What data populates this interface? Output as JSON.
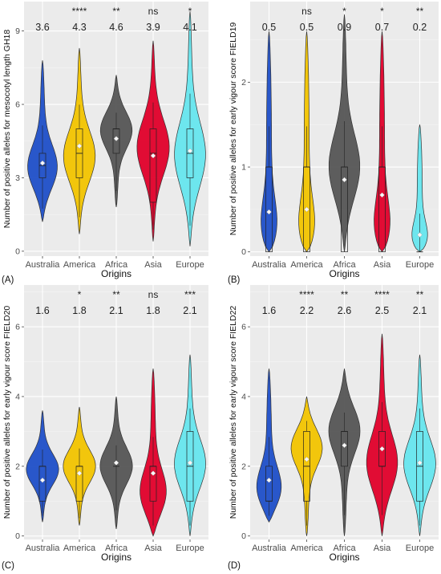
{
  "chart_data": [
    {
      "panel_label": "(A)",
      "type": "violin",
      "xlabel": "Origins",
      "ylabel": "Number of positive alleles for mesocotyl length GH18",
      "ylim": [
        -0.2,
        10.2
      ],
      "yticks": [
        0,
        3,
        6,
        9
      ],
      "grid": true,
      "categories": [
        "Australia",
        "America",
        "Africa",
        "Asia",
        "Europe"
      ],
      "colors": [
        "#1f4fc8",
        "#f2c400",
        "#555555",
        "#e0002a",
        "#66e6ee"
      ],
      "means": [
        "3.6",
        "4.3",
        "4.6",
        "3.9",
        "4.1"
      ],
      "significance": [
        "",
        "****",
        "**",
        "ns",
        "*"
      ],
      "distributions": [
        {
          "min": 1.2,
          "q1": 3.0,
          "median": 3.5,
          "q3": 4.0,
          "max": 7.8,
          "mean": 3.6,
          "peak": 3.3
        },
        {
          "min": 0.7,
          "q1": 3.0,
          "median": 4.0,
          "q3": 5.0,
          "max": 8.3,
          "mean": 4.3,
          "peak": 3.8
        },
        {
          "min": 1.8,
          "q1": 4.0,
          "median": 5.0,
          "q3": 5.0,
          "max": 7.2,
          "mean": 4.6,
          "peak": 5.0
        },
        {
          "min": 0.4,
          "q1": 2.0,
          "median": 4.0,
          "q3": 5.0,
          "max": 8.6,
          "mean": 3.9,
          "peak": 4.2
        },
        {
          "min": 0.2,
          "q1": 3.0,
          "median": 4.0,
          "q3": 5.0,
          "max": 9.8,
          "mean": 4.1,
          "peak": 3.8
        }
      ]
    },
    {
      "panel_label": "(B)",
      "type": "violin",
      "xlabel": "Origins",
      "ylabel": "Number of positive alleles for early vigour score FIELD19",
      "ylim": [
        -0.05,
        2.95
      ],
      "yticks": [
        0,
        1,
        2
      ],
      "grid": true,
      "categories": [
        "Australia",
        "America",
        "Africa",
        "Asia",
        "Europe"
      ],
      "colors": [
        "#1f4fc8",
        "#f2c400",
        "#555555",
        "#e0002a",
        "#66e6ee"
      ],
      "means": [
        "0.5",
        "0.5",
        "0.9",
        "0.7",
        "0.2"
      ],
      "significance": [
        "",
        "ns",
        "*",
        "*",
        "**"
      ],
      "distributions": [
        {
          "min": 0,
          "q1": 0,
          "median": 1,
          "q3": 1,
          "max": 2.6,
          "mean": 0.47,
          "peak": 0.1
        },
        {
          "min": 0,
          "q1": 0,
          "median": 1,
          "q3": 1,
          "max": 2.6,
          "mean": 0.5,
          "peak": 0.1
        },
        {
          "min": 0,
          "q1": 0,
          "median": 1,
          "q3": 1,
          "max": 2.8,
          "mean": 0.85,
          "peak": 0.95
        },
        {
          "min": 0,
          "q1": 0,
          "median": 1,
          "q3": 1,
          "max": 2.6,
          "mean": 0.67,
          "peak": 0.1
        },
        {
          "min": 0,
          "q1": 0,
          "median": 0,
          "q3": 0,
          "max": 1.5,
          "mean": 0.2,
          "peak": 0.05
        }
      ]
    },
    {
      "panel_label": "(C)",
      "type": "violin",
      "xlabel": "Origins",
      "ylabel": "Number of positive alleles for early vigour score FIELD20",
      "ylim": [
        -0.1,
        7.2
      ],
      "yticks": [
        0,
        2,
        4,
        6
      ],
      "grid": true,
      "categories": [
        "Australia",
        "America",
        "Africa",
        "Asia",
        "Europe"
      ],
      "colors": [
        "#1f4fc8",
        "#f2c400",
        "#555555",
        "#e0002a",
        "#66e6ee"
      ],
      "means": [
        "1.6",
        "1.8",
        "2.1",
        "1.8",
        "2.1"
      ],
      "significance": [
        "",
        "*",
        "**",
        "ns",
        "***"
      ],
      "distributions": [
        {
          "min": 0.4,
          "q1": 1,
          "median": 2,
          "q3": 2,
          "max": 3.6,
          "mean": 1.6,
          "peak": 1.9
        },
        {
          "min": 0.3,
          "q1": 1,
          "median": 2,
          "q3": 2,
          "max": 3.7,
          "mean": 1.8,
          "peak": 2.0
        },
        {
          "min": 0.2,
          "q1": 2,
          "median": 2,
          "q3": 2,
          "max": 4.0,
          "mean": 2.1,
          "peak": 2.0
        },
        {
          "min": 0.0,
          "q1": 1,
          "median": 2,
          "q3": 2,
          "max": 4.8,
          "mean": 1.8,
          "peak": 1.1
        },
        {
          "min": 0.0,
          "q1": 1,
          "median": 2,
          "q3": 3,
          "max": 5.2,
          "mean": 2.1,
          "peak": 2.0
        }
      ]
    },
    {
      "panel_label": "(D)",
      "type": "violin",
      "xlabel": "Origins",
      "ylabel": "Number of positive alleles for early vigour score FIELD22",
      "ylim": [
        -0.1,
        7.2
      ],
      "yticks": [
        0,
        2,
        4,
        6
      ],
      "grid": true,
      "categories": [
        "Australia",
        "America",
        "Africa",
        "Asia",
        "Europe"
      ],
      "colors": [
        "#1f4fc8",
        "#f2c400",
        "#555555",
        "#e0002a",
        "#66e6ee"
      ],
      "means": [
        "1.6",
        "2.2",
        "2.6",
        "2.5",
        "2.1"
      ],
      "significance": [
        "",
        "****",
        "**",
        "****",
        "**"
      ],
      "distributions": [
        {
          "min": 0.4,
          "q1": 1,
          "median": 1,
          "q3": 2,
          "max": 4.8,
          "mean": 1.6,
          "peak": 1.2
        },
        {
          "min": 0.0,
          "q1": 1,
          "median": 2,
          "q3": 3,
          "max": 4.0,
          "mean": 2.2,
          "peak": 2.6
        },
        {
          "min": 0.0,
          "q1": 2,
          "median": 3,
          "q3": 3,
          "max": 4.8,
          "mean": 2.6,
          "peak": 3.1
        },
        {
          "min": 0.0,
          "q1": 2,
          "median": 2,
          "q3": 3,
          "max": 5.8,
          "mean": 2.5,
          "peak": 2.0
        },
        {
          "min": 0.0,
          "q1": 1,
          "median": 2,
          "q3": 3,
          "max": 5.2,
          "mean": 2.1,
          "peak": 2.0
        }
      ]
    }
  ]
}
